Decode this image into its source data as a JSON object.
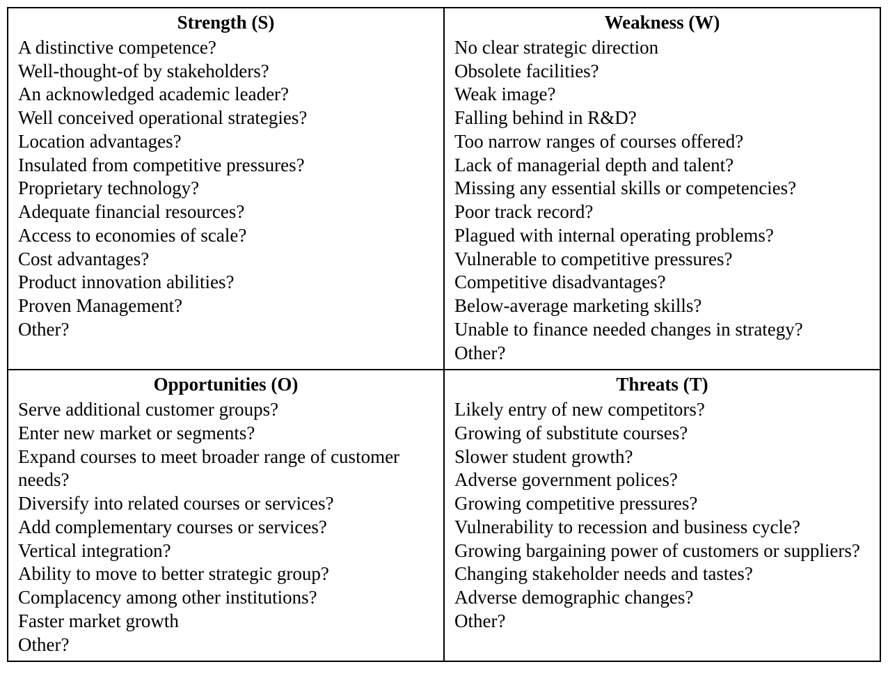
{
  "swot": {
    "type": "table",
    "layout": "2x2",
    "border_color": "#000000",
    "background_color": "#ffffff",
    "text_color": "#000000",
    "font_family": "Times New Roman",
    "body_fontsize_pt": 20,
    "heading_fontweight": "bold",
    "quadrants": {
      "strength": {
        "heading": "Strength (S)",
        "items": [
          "A distinctive competence?",
          "Well-thought-of by stakeholders?",
          "An acknowledged academic leader?",
          "Well conceived operational strategies?",
          "Location advantages?",
          "Insulated from competitive pressures?",
          "Proprietary technology?",
          "Adequate financial resources?",
          "Access to economies of scale?",
          "Cost advantages?",
          "Product innovation abilities?",
          "Proven Management?",
          "Other?"
        ]
      },
      "weakness": {
        "heading": "Weakness (W)",
        "items": [
          "No clear strategic direction",
          "Obsolete facilities?",
          "Weak image?",
          "Falling behind in R&D?",
          "Too narrow ranges of courses offered?",
          "Lack of managerial depth and talent?",
          "Missing any essential skills or competencies?",
          "Poor track record?",
          "Plagued with internal operating problems?",
          "Vulnerable to competitive pressures?",
          "Competitive disadvantages?",
          "Below-average marketing skills?",
          "Unable to finance needed changes in strategy?",
          "Other?"
        ]
      },
      "opportunities": {
        "heading": "Opportunities (O)",
        "items": [
          "Serve additional customer groups?",
          "Enter new market or segments?",
          "Expand courses to meet broader range of customer needs?",
          "Diversify into related courses or services?",
          "Add complementary courses or services?",
          "Vertical integration?",
          "Ability to move to better strategic group?",
          "Complacency among other institutions?",
          "Faster market growth",
          "Other?"
        ]
      },
      "threats": {
        "heading": "Threats (T)",
        "items": [
          "Likely entry of new competitors?",
          "Growing of substitute courses?",
          "Slower student growth?",
          "Adverse government polices?",
          "Growing competitive pressures?",
          "Vulnerability to recession and business cycle?",
          "Growing bargaining power of customers or suppliers?",
          "Changing stakeholder needs and tastes?",
          "Adverse demographic changes?",
          "Other?"
        ]
      }
    }
  }
}
